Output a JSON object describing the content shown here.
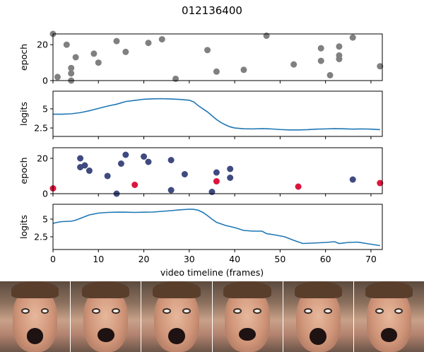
{
  "figure": {
    "title": "012136400",
    "xlabel": "video timeline (frames)"
  },
  "chart_data": [
    {
      "type": "scatter",
      "ylabel": "epoch",
      "xlim": [
        0,
        72.5
      ],
      "ylim": [
        0,
        26
      ],
      "yticks": [
        0,
        20
      ],
      "series": [
        {
          "color": "#808080",
          "points": [
            [
              0,
              26
            ],
            [
              1,
              2
            ],
            [
              3,
              20
            ],
            [
              4,
              7
            ],
            [
              4,
              4
            ],
            [
              4,
              0
            ],
            [
              5,
              13
            ],
            [
              9,
              15
            ],
            [
              10,
              10
            ],
            [
              14,
              22
            ],
            [
              16,
              16
            ],
            [
              21,
              21
            ],
            [
              24,
              23
            ],
            [
              27,
              1
            ],
            [
              34,
              17
            ],
            [
              36,
              5
            ],
            [
              42,
              6
            ],
            [
              47,
              25
            ],
            [
              53,
              9
            ],
            [
              59,
              18
            ],
            [
              59,
              11
            ],
            [
              61,
              3
            ],
            [
              63,
              19
            ],
            [
              63,
              14
            ],
            [
              63,
              12
            ],
            [
              66,
              24
            ],
            [
              72,
              8
            ]
          ]
        }
      ]
    },
    {
      "type": "line",
      "ylabel": "logits",
      "xlim": [
        0,
        72.5
      ],
      "ylim": [
        1.4,
        7.3
      ],
      "yticks": [
        2.5,
        5.0
      ],
      "series": [
        {
          "color": "#1f77b4",
          "points": [
            [
              0,
              4.3
            ],
            [
              2,
              4.3
            ],
            [
              4,
              4.35
            ],
            [
              6,
              4.5
            ],
            [
              8,
              4.75
            ],
            [
              10,
              5.05
            ],
            [
              12,
              5.35
            ],
            [
              14,
              5.6
            ],
            [
              16,
              5.95
            ],
            [
              18,
              6.1
            ],
            [
              20,
              6.25
            ],
            [
              22,
              6.3
            ],
            [
              24,
              6.32
            ],
            [
              26,
              6.28
            ],
            [
              28,
              6.22
            ],
            [
              30,
              6.12
            ],
            [
              31,
              5.9
            ],
            [
              32,
              5.4
            ],
            [
              33,
              5.0
            ],
            [
              34,
              4.6
            ],
            [
              35,
              4.1
            ],
            [
              36,
              3.6
            ],
            [
              37,
              3.2
            ],
            [
              38,
              2.9
            ],
            [
              39,
              2.65
            ],
            [
              40,
              2.5
            ],
            [
              42,
              2.4
            ],
            [
              44,
              2.38
            ],
            [
              46,
              2.42
            ],
            [
              48,
              2.38
            ],
            [
              50,
              2.3
            ],
            [
              52,
              2.25
            ],
            [
              54,
              2.25
            ],
            [
              56,
              2.28
            ],
            [
              58,
              2.35
            ],
            [
              60,
              2.38
            ],
            [
              62,
              2.42
            ],
            [
              64,
              2.4
            ],
            [
              66,
              2.35
            ],
            [
              68,
              2.38
            ],
            [
              70,
              2.35
            ],
            [
              72,
              2.28
            ]
          ]
        }
      ]
    },
    {
      "type": "scatter",
      "ylabel": "epoch",
      "xlim": [
        0,
        72.5
      ],
      "ylim": [
        0,
        26
      ],
      "yticks": [
        0,
        20
      ],
      "series": [
        {
          "color": "#3f4a80",
          "points": [
            [
              6,
              20
            ],
            [
              6,
              15
            ],
            [
              7,
              16
            ],
            [
              8,
              13
            ],
            [
              12,
              10
            ],
            [
              14,
              0
            ],
            [
              15,
              17
            ],
            [
              16,
              22
            ],
            [
              20,
              21
            ],
            [
              21,
              18
            ],
            [
              26,
              19
            ],
            [
              26,
              2
            ],
            [
              29,
              11
            ],
            [
              35,
              1
            ],
            [
              36,
              12
            ],
            [
              39,
              14
            ],
            [
              39,
              9
            ],
            [
              66,
              8
            ]
          ]
        },
        {
          "color": "#dc143c",
          "points": [
            [
              0,
              3
            ],
            [
              18,
              5
            ],
            [
              36,
              7
            ],
            [
              54,
              4
            ],
            [
              72,
              6
            ]
          ]
        }
      ]
    },
    {
      "type": "line",
      "ylabel": "logits",
      "xlim": [
        0,
        72.5
      ],
      "ylim": [
        0.7,
        7.1
      ],
      "yticks": [
        2.5,
        5.0
      ],
      "series": [
        {
          "color": "#1f77b4",
          "points": [
            [
              0,
              4.4
            ],
            [
              1,
              4.55
            ],
            [
              2,
              4.65
            ],
            [
              4,
              4.7
            ],
            [
              5,
              4.85
            ],
            [
              6,
              5.1
            ],
            [
              8,
              5.6
            ],
            [
              10,
              5.85
            ],
            [
              12,
              5.95
            ],
            [
              14,
              5.98
            ],
            [
              16,
              5.98
            ],
            [
              18,
              5.95
            ],
            [
              20,
              5.98
            ],
            [
              22,
              6.0
            ],
            [
              24,
              6.1
            ],
            [
              26,
              6.2
            ],
            [
              28,
              6.32
            ],
            [
              30,
              6.4
            ],
            [
              31,
              6.38
            ],
            [
              32,
              6.25
            ],
            [
              33,
              5.95
            ],
            [
              34,
              5.5
            ],
            [
              35,
              5.0
            ],
            [
              36,
              4.55
            ],
            [
              38,
              4.1
            ],
            [
              40,
              3.8
            ],
            [
              42,
              3.4
            ],
            [
              44,
              3.3
            ],
            [
              46,
              3.3
            ],
            [
              47,
              2.95
            ],
            [
              49,
              2.75
            ],
            [
              51,
              2.5
            ],
            [
              53,
              2.0
            ],
            [
              55,
              1.55
            ],
            [
              57,
              1.6
            ],
            [
              60,
              1.7
            ],
            [
              62,
              1.8
            ],
            [
              63,
              1.55
            ],
            [
              65,
              1.7
            ],
            [
              67,
              1.75
            ],
            [
              69,
              1.55
            ],
            [
              72,
              1.25
            ]
          ]
        }
      ]
    }
  ],
  "xticks": [
    0,
    10,
    20,
    30,
    40,
    50,
    60,
    70
  ],
  "filmstrip": {
    "frame_count": 6
  }
}
